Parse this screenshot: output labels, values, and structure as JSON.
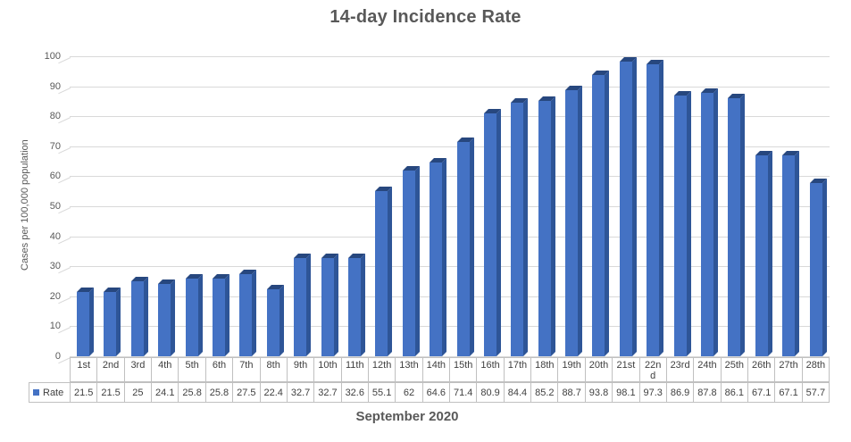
{
  "chart_data": {
    "type": "bar",
    "style": "3d-column",
    "title": "14-day Incidence Rate",
    "xlabel": "September 2020",
    "ylabel": "Cases per 100,000 population",
    "ylim": [
      0,
      100
    ],
    "ytick_step": 10,
    "yticks": [
      0,
      10,
      20,
      30,
      40,
      50,
      60,
      70,
      80,
      90,
      100
    ],
    "grid": true,
    "categories": [
      "1st",
      "2nd",
      "3rd",
      "4th",
      "5th",
      "6th",
      "7th",
      "8th",
      "9th",
      "10th",
      "11th",
      "12th",
      "13th",
      "14th",
      "15th",
      "16th",
      "17th",
      "18th",
      "19th",
      "20th",
      "21st",
      "22nd",
      "23rd",
      "24th",
      "25th",
      "26th",
      "27th",
      "28th"
    ],
    "series": [
      {
        "name": "Rate",
        "values": [
          21.5,
          21.5,
          25,
          24.1,
          25.8,
          25.8,
          27.5,
          22.4,
          32.7,
          32.7,
          32.6,
          55.1,
          62,
          64.6,
          71.4,
          80.9,
          84.4,
          85.2,
          88.7,
          93.8,
          98.1,
          97.3,
          86.9,
          87.8,
          86.1,
          67.1,
          67.1,
          57.7
        ]
      }
    ],
    "legend_position": "data-table-left",
    "data_table_shown": true
  },
  "colors": {
    "bar_front": "#4472C4",
    "bar_side": "#2E5597",
    "bar_top": "#27477E",
    "gridline": "#D9D9D9",
    "table_border": "#C0C0C0",
    "label_text": "#595959",
    "table_text": "#404040"
  }
}
